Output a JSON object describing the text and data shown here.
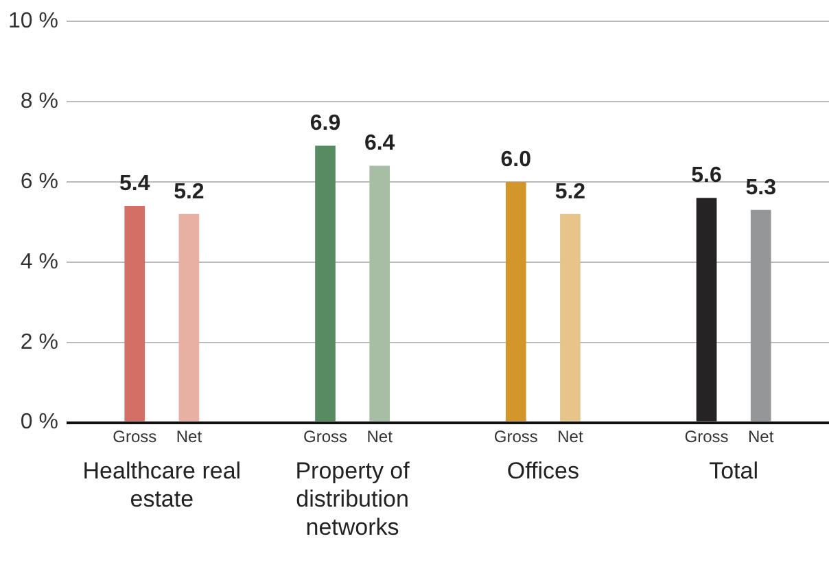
{
  "chart_data": {
    "type": "bar",
    "categories": [
      "Healthcare real estate",
      "Property of distribution networks",
      "Offices",
      "Total"
    ],
    "series": [
      {
        "name": "Gross",
        "colors": [
          "#d46f66",
          "#578c63",
          "#d3962b",
          "#252323"
        ],
        "values": [
          5.4,
          6.9,
          6.0,
          5.6
        ],
        "value_labels": [
          "5.4",
          "6.9",
          "6.0",
          "5.6"
        ]
      },
      {
        "name": "Net",
        "colors": [
          "#e8afa3",
          "#a7bea5",
          "#e7c48a",
          "#959698"
        ],
        "values": [
          5.2,
          6.4,
          5.2,
          5.3
        ],
        "value_labels": [
          "5.2",
          "6.4",
          "5.2",
          "5.3"
        ]
      }
    ],
    "ylim": [
      0,
      10
    ],
    "yticks": [
      {
        "value": 0,
        "label": "0 %"
      },
      {
        "value": 2,
        "label": "2 %"
      },
      {
        "value": 4,
        "label": "4 %"
      },
      {
        "value": 6,
        "label": "6 %"
      },
      {
        "value": 8,
        "label": "8 %"
      },
      {
        "value": 10,
        "label": "10 %"
      }
    ],
    "grid": "y",
    "legend": false
  }
}
